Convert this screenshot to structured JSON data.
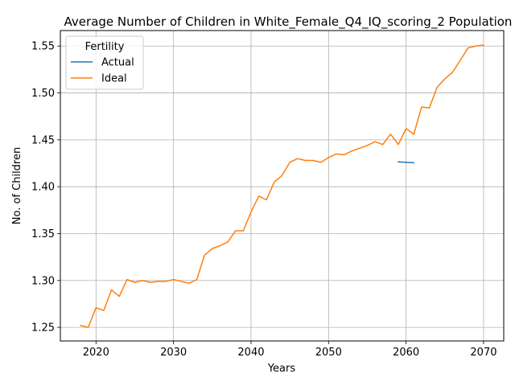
{
  "chart_data": {
    "type": "line",
    "title": "Average Number of Children in White_Female_Q4_IQ_scoring_2 Population",
    "xlabel": "Years",
    "ylabel": "No. of Children",
    "xlim": [
      2015.4,
      2072.6
    ],
    "ylim": [
      1.2355,
      1.5665
    ],
    "xticks": [
      2020,
      2030,
      2040,
      2050,
      2060,
      2070
    ],
    "yticks": [
      1.25,
      1.3,
      1.35,
      1.4,
      1.45,
      1.5,
      1.55
    ],
    "grid": true,
    "legend": {
      "title": "Fertility",
      "placement": "top-left"
    },
    "series": [
      {
        "name": "Actual",
        "color": "#1f77b4",
        "x": [
          2059,
          2060,
          2061
        ],
        "y": [
          1.4265,
          1.426,
          1.4255
        ]
      },
      {
        "name": "Ideal",
        "color": "#ff7f0e",
        "x": [
          2018,
          2019,
          2020,
          2021,
          2022,
          2023,
          2024,
          2025,
          2026,
          2027,
          2028,
          2029,
          2030,
          2031,
          2032,
          2033,
          2034,
          2035,
          2036,
          2037,
          2038,
          2039,
          2040,
          2041,
          2042,
          2043,
          2044,
          2045,
          2046,
          2047,
          2048,
          2049,
          2050,
          2051,
          2052,
          2053,
          2054,
          2055,
          2056,
          2057,
          2058,
          2059,
          2060,
          2061,
          2062,
          2063,
          2064,
          2065,
          2066,
          2067,
          2068,
          2069,
          2070
        ],
        "y": [
          1.252,
          1.25,
          1.271,
          1.268,
          1.29,
          1.283,
          1.301,
          1.298,
          1.3,
          1.298,
          1.299,
          1.299,
          1.301,
          1.299,
          1.297,
          1.301,
          1.327,
          1.334,
          1.337,
          1.341,
          1.353,
          1.353,
          1.373,
          1.39,
          1.386,
          1.405,
          1.412,
          1.426,
          1.43,
          1.428,
          1.428,
          1.426,
          1.431,
          1.435,
          1.434,
          1.438,
          1.441,
          1.444,
          1.448,
          1.445,
          1.456,
          1.445,
          1.462,
          1.456,
          1.485,
          1.484,
          1.506,
          1.515,
          1.522,
          1.535,
          1.548,
          1.55,
          1.551
        ]
      }
    ]
  }
}
